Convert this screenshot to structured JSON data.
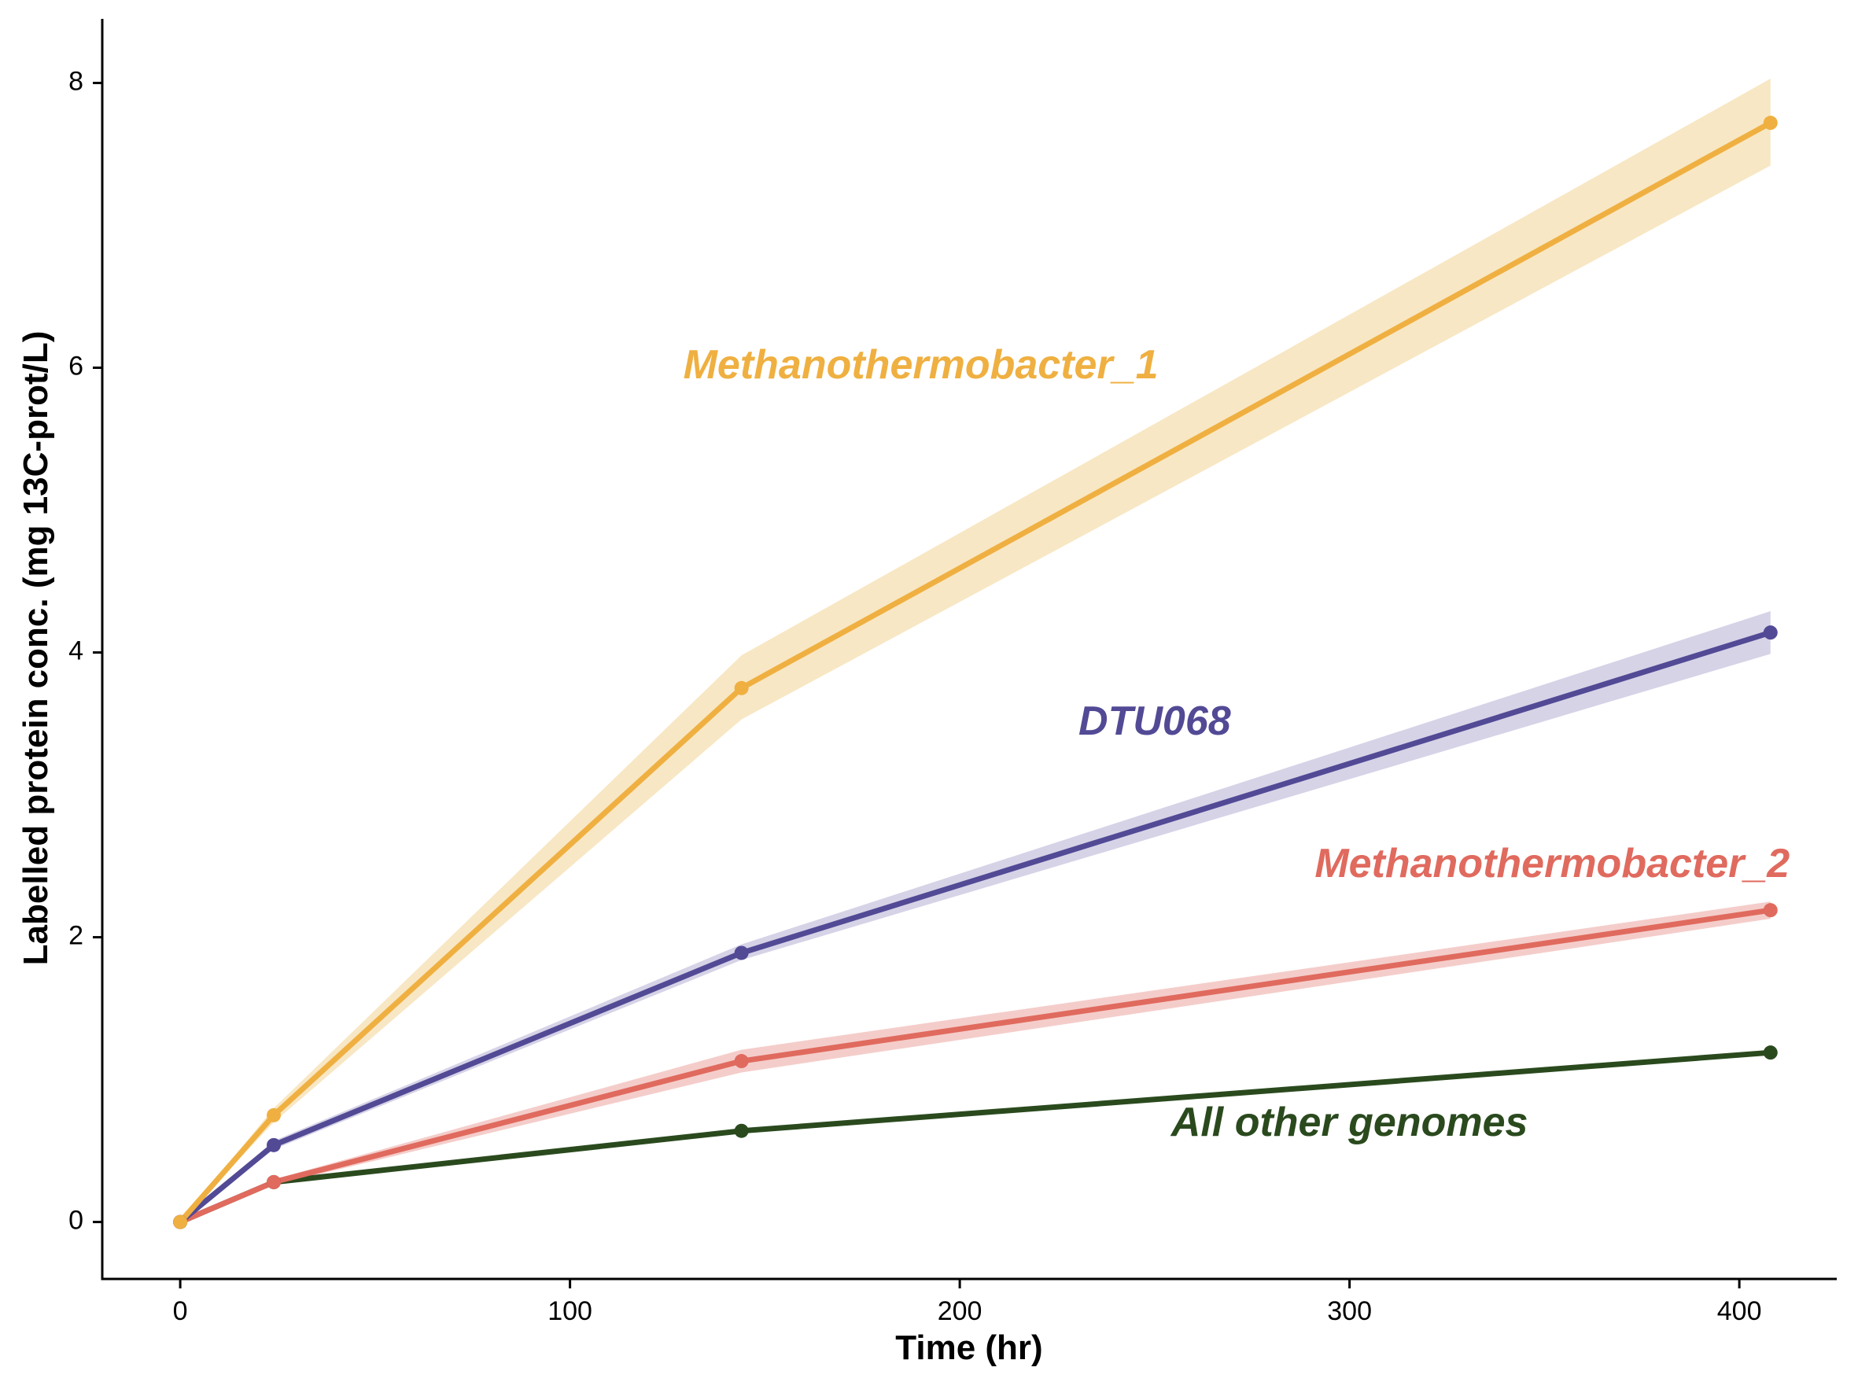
{
  "chart_data": {
    "type": "line",
    "xlabel": "Time (hr)",
    "ylabel": "Labelled protein conc. (mg 13C-prot/L)",
    "xlim": [
      -20,
      425
    ],
    "ylim": [
      -0.4,
      8.45
    ],
    "x_ticks": [
      0,
      100,
      200,
      300,
      400
    ],
    "y_ticks": [
      0,
      2,
      4,
      6,
      8
    ],
    "grid": false,
    "legend": "none (series labelled directly on the plot)",
    "series": [
      {
        "name": "Methanothermobacter_1",
        "color": "#EFB041",
        "band_color": "#F8E7C4",
        "x": [
          0,
          24,
          144,
          408
        ],
        "y": [
          0,
          0.75,
          3.75,
          7.72
        ],
        "lower": [
          0,
          0.7,
          3.53,
          7.42
        ],
        "upper": [
          0,
          0.8,
          3.98,
          8.03
        ],
        "label_pos": [
          190,
          6.0
        ]
      },
      {
        "name": "DTU068",
        "color": "#524A95",
        "band_color": "#D6D3E7",
        "x": [
          0,
          24,
          144,
          408
        ],
        "y": [
          0,
          0.54,
          1.89,
          4.14
        ],
        "lower": [
          0,
          0.51,
          1.84,
          3.99
        ],
        "upper": [
          0,
          0.57,
          1.95,
          4.29
        ],
        "label_pos": [
          250,
          3.5
        ]
      },
      {
        "name": "Methanothermobacter_2",
        "color": "#E06A5E",
        "band_color": "#F4CDCA",
        "x": [
          0,
          24,
          144,
          408
        ],
        "y": [
          0,
          0.28,
          1.13,
          2.19
        ],
        "lower": [
          0,
          0.26,
          1.05,
          2.13
        ],
        "upper": [
          0,
          0.3,
          1.21,
          2.25
        ],
        "label_pos": [
          352,
          2.5
        ]
      },
      {
        "name": "All other genomes",
        "color": "#2A4A1E",
        "x": [
          0,
          24,
          144,
          408
        ],
        "y": [
          0,
          0.28,
          0.64,
          1.19
        ],
        "label_pos": [
          300,
          0.68
        ]
      }
    ]
  }
}
